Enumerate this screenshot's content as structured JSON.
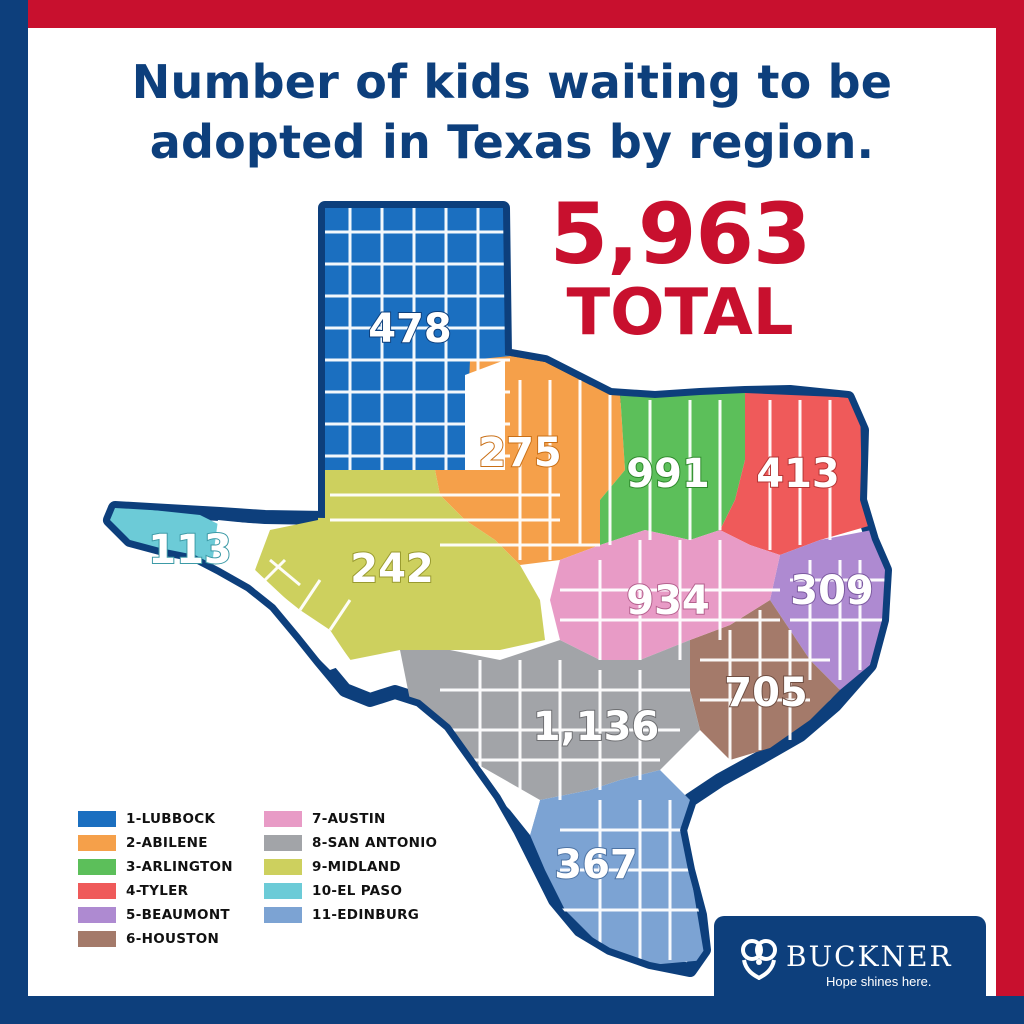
{
  "title": "Number of kids waiting to be adopted in Texas by region.",
  "total": {
    "value": "5,963",
    "label": "TOTAL"
  },
  "colors": {
    "navy": "#0d3f7c",
    "red": "#c8102e",
    "lubbock": "#1b6fc0",
    "abilene": "#f5a04a",
    "arlington": "#5cbf5a",
    "tyler": "#ef5a5a",
    "beaumont": "#ae8ad1",
    "houston": "#a47a6a",
    "austin": "#e89bc6",
    "san_antonio": "#a2a4a8",
    "midland": "#cdd05e",
    "el_paso": "#6ccbd7",
    "edinburg": "#7ca3d3"
  },
  "regions": [
    {
      "id": "lubbock",
      "label": "1-LUBBOCK",
      "count": "478"
    },
    {
      "id": "abilene",
      "label": "2-ABILENE",
      "count": "275"
    },
    {
      "id": "arlington",
      "label": "3-ARLINGTON",
      "count": "991"
    },
    {
      "id": "tyler",
      "label": "4-TYLER",
      "count": "413"
    },
    {
      "id": "beaumont",
      "label": "5-BEAUMONT",
      "count": "309"
    },
    {
      "id": "houston",
      "label": "6-HOUSTON",
      "count": "705"
    },
    {
      "id": "austin",
      "label": "7-AUSTIN",
      "count": "934"
    },
    {
      "id": "san_antonio",
      "label": "8-SAN ANTONIO",
      "count": "1,136"
    },
    {
      "id": "midland",
      "label": "9-MIDLAND",
      "count": "242"
    },
    {
      "id": "el_paso",
      "label": "10-EL PASO",
      "count": "113"
    },
    {
      "id": "edinburg",
      "label": "11-EDINBURG",
      "count": "367"
    }
  ],
  "brand": {
    "name": "BUCKNER",
    "tagline": "Hope shines here."
  }
}
